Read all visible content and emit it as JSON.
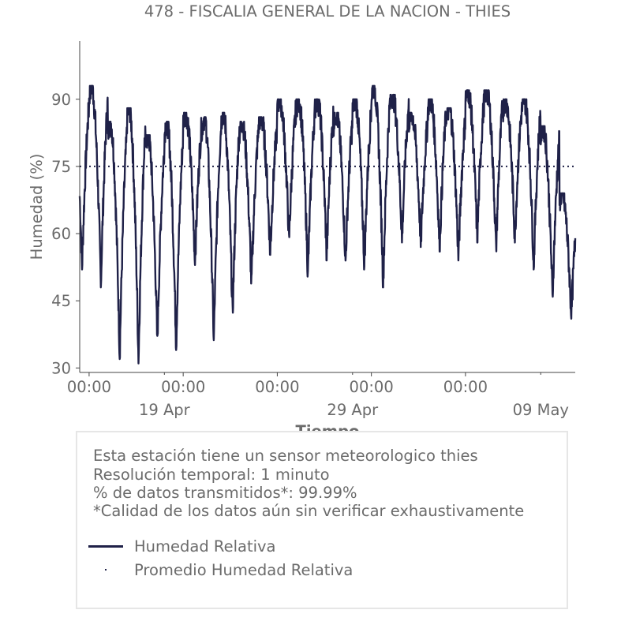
{
  "chart_data": {
    "type": "line",
    "title": "478 - FISCALIA GENERAL DE LA NACION - THIES",
    "xlabel": "Tiempo",
    "ylabel": "Humedad (%)",
    "x_start": "2024-04-14 12:00",
    "x_end": "2024-05-10 20:00",
    "ylim": [
      29,
      103
    ],
    "yticks": [
      30,
      45,
      60,
      75,
      90
    ],
    "xticks_major": [
      {
        "t": "2024-04-15 00:00",
        "label": "00:00"
      },
      {
        "t": "2024-04-20 00:00",
        "label": "00:00"
      },
      {
        "t": "2024-04-25 00:00",
        "label": "00:00"
      },
      {
        "t": "2024-04-30 00:00",
        "label": "00:00"
      },
      {
        "t": "2024-05-05 00:00",
        "label": "00:00"
      }
    ],
    "xticks_minor": [
      {
        "t": "2024-04-19 00:00",
        "label": "19 Apr"
      },
      {
        "t": "2024-04-29 00:00",
        "label": "29 Apr"
      },
      {
        "t": "2024-05-09 00:00",
        "label": "09 May"
      }
    ],
    "series": [
      {
        "name": "Humedad Relativa",
        "color": "#1f2148",
        "style": "solid",
        "daily_max": [
          91,
          93,
          85,
          88,
          82,
          85,
          87,
          86,
          87,
          85,
          86,
          90,
          90,
          90,
          87,
          90,
          93,
          91,
          87,
          90,
          88,
          92,
          92,
          90,
          90,
          84,
          69
        ],
        "daily_min": [
          52,
          48,
          32,
          31,
          35,
          34,
          53,
          35,
          41,
          48,
          55,
          58,
          50,
          54,
          53,
          52,
          48,
          58,
          57,
          56,
          54,
          58,
          56,
          58,
          52,
          45,
          41
        ]
      },
      {
        "name": "Promedio Humedad Relativa",
        "color": "#1f2148",
        "style": "dotted",
        "values": [
          75
        ]
      }
    ],
    "grid": false,
    "legend_position": "below"
  },
  "info": {
    "line1": "Esta estación tiene un sensor meteorologico thies",
    "line2": "Resolución temporal: 1 minuto",
    "line3": "% de datos transmitidos*: 99.99%",
    "line4": "*Calidad de los datos aún sin verificar exhaustivamente"
  },
  "legend": {
    "item1": "Humedad Relativa",
    "item2": "Promedio Humedad Relativa"
  }
}
